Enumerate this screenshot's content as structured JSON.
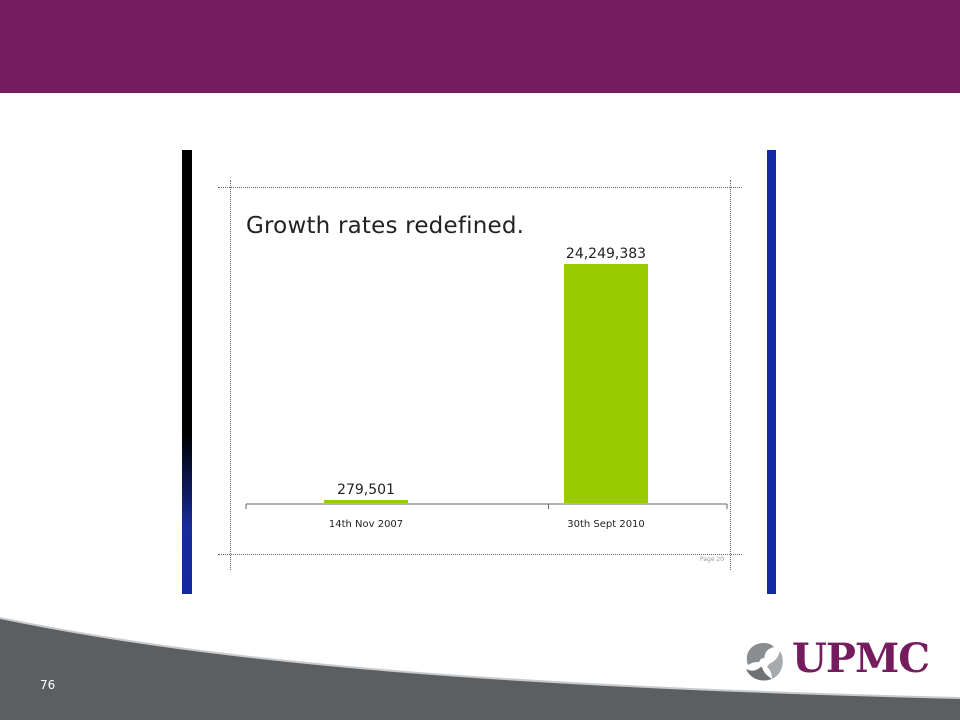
{
  "slide": {
    "number": "76",
    "page_label": "Page 20",
    "logo_text": "UPMC"
  },
  "colors": {
    "header": "#751c5f",
    "bar": "#99cc00",
    "left_accent": "#000000",
    "right_accent": "#142aa3",
    "footer": "#5b5f61"
  },
  "chart_data": {
    "type": "bar",
    "title": "Growth rates redefined.",
    "categories": [
      "14th Nov 2007",
      "30th Sept 2010"
    ],
    "values": [
      279501,
      24249383
    ],
    "value_labels": [
      "279,501",
      "24,249,383"
    ],
    "xlabel": "",
    "ylabel": "",
    "ylim": [
      0,
      24249383
    ],
    "grid": false,
    "legend": "none"
  }
}
